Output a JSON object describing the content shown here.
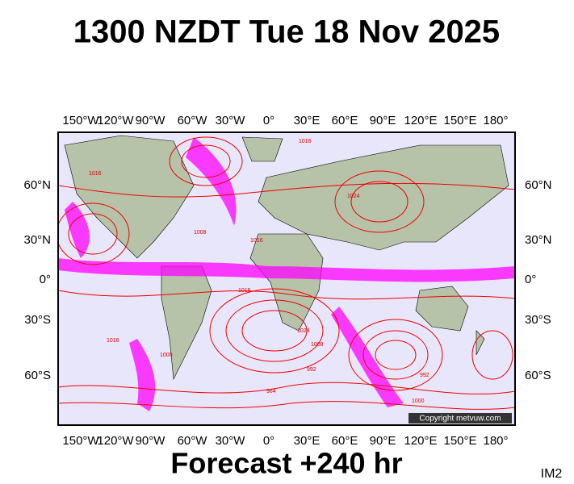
{
  "header": {
    "title": "1300 NZDT Tue 18 Nov 2025"
  },
  "map": {
    "longitude_labels": [
      "150°W",
      "120°W",
      "90°W",
      "60°W",
      "30°W",
      "0°",
      "30°E",
      "60°E",
      "90°E",
      "120°E",
      "150°E",
      "180°"
    ],
    "latitude_left": [
      "60°N",
      "30°N",
      "0°",
      "30°S",
      "60°S"
    ],
    "latitude_right": [
      "60°N",
      "30°N",
      "0°",
      "30°S",
      "60°S"
    ],
    "isobar_labels": [
      "1016",
      "1016",
      "1024",
      "1016",
      "1008",
      "1016",
      "1000",
      "1024",
      "1008",
      "992",
      "984",
      "1000",
      "1016",
      "992"
    ],
    "copyright": "Copyright metvuw.com"
  },
  "footer": {
    "forecast": "Forecast +240 hr",
    "code": "IM2"
  }
}
